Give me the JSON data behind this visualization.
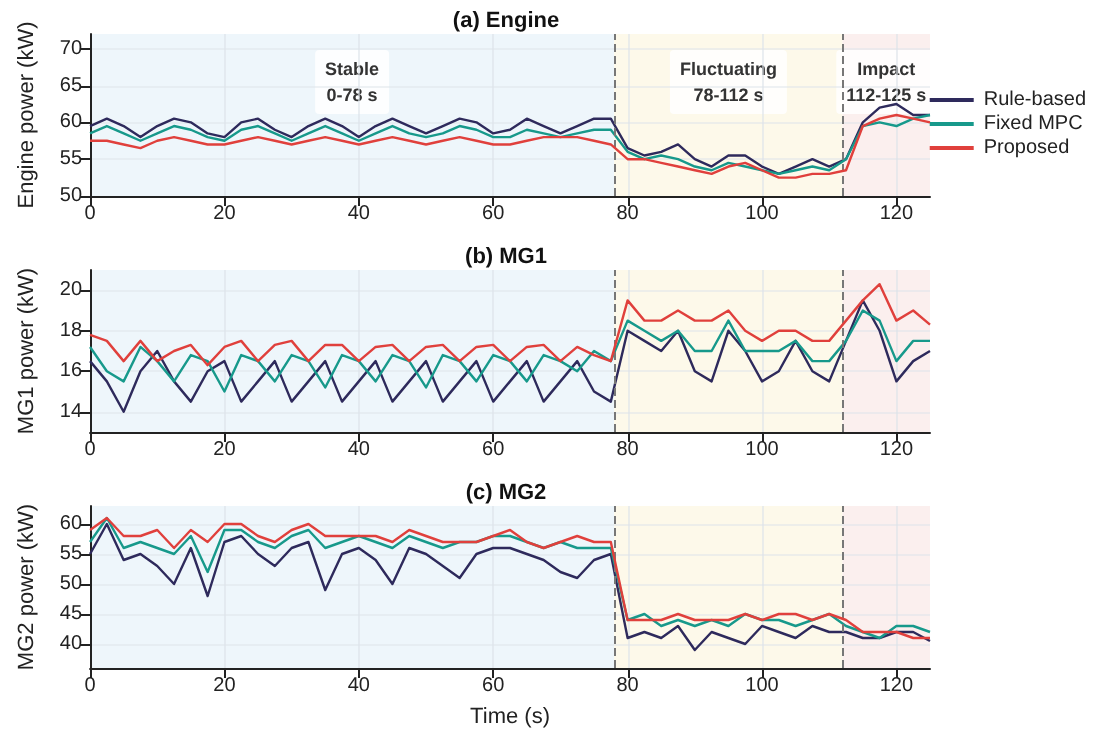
{
  "chart_data": [
    {
      "type": "line",
      "title": "(a) Engine",
      "ylabel": "Engine power (kW)",
      "x": [
        0,
        2.5,
        5,
        7.5,
        10,
        12.5,
        15,
        17.5,
        20,
        22.5,
        25,
        27.5,
        30,
        32.5,
        35,
        37.5,
        40,
        42.5,
        45,
        47.5,
        50,
        52.5,
        55,
        57.5,
        60,
        62.5,
        65,
        67.5,
        70,
        72.5,
        75,
        77.5,
        80,
        82.5,
        85,
        87.5,
        90,
        92.5,
        95,
        97.5,
        100,
        102.5,
        105,
        107.5,
        110,
        112.5,
        115,
        117.5,
        120,
        122.5,
        125
      ],
      "series": [
        {
          "name": "Rule-based",
          "color": "#2e2a5c",
          "values": [
            59.5,
            60.5,
            59.5,
            58,
            59.5,
            60.5,
            60,
            58.5,
            58,
            60,
            60.5,
            59,
            58,
            59.5,
            60.5,
            59.5,
            58,
            59.5,
            60.5,
            59.5,
            58.5,
            59.5,
            60.5,
            60,
            58.5,
            59,
            60.5,
            59.5,
            58.5,
            59.5,
            60.5,
            60.5,
            56.5,
            55.5,
            56,
            57,
            55,
            54,
            55.5,
            55.5,
            54,
            53,
            54,
            55,
            54,
            55,
            60,
            62,
            62.5,
            61,
            61
          ]
        },
        {
          "name": "Fixed MPC",
          "color": "#17998b",
          "values": [
            58.5,
            59.5,
            58.5,
            57.5,
            58.5,
            59.5,
            59,
            58,
            57.5,
            59,
            59.5,
            58.5,
            57.5,
            58.5,
            59.5,
            58.5,
            57.5,
            58.5,
            59.5,
            58.5,
            58,
            58.5,
            59.5,
            59,
            58,
            58,
            59,
            58.5,
            58,
            58.5,
            59,
            59,
            56,
            55,
            55.5,
            55,
            54,
            53.5,
            54.5,
            54,
            53.5,
            53,
            53.5,
            54,
            53.5,
            55,
            59.5,
            60,
            59.5,
            60.5,
            61
          ]
        },
        {
          "name": "Proposed",
          "color": "#e0403c",
          "values": [
            57.5,
            57.5,
            57,
            56.5,
            57.5,
            58,
            57.5,
            57,
            57,
            57.5,
            58,
            57.5,
            57,
            57.5,
            58,
            57.5,
            57,
            57.5,
            58,
            57.5,
            57,
            57.5,
            58,
            57.5,
            57,
            57,
            57.5,
            58,
            58,
            58,
            57.5,
            57,
            55,
            55,
            54.5,
            54,
            53.5,
            53,
            54,
            54.5,
            53.5,
            52.5,
            52.5,
            53,
            53,
            53.5,
            59.5,
            60.5,
            61,
            60.5,
            60
          ]
        }
      ],
      "xlim": [
        0,
        125
      ],
      "xticks": [
        0,
        20,
        40,
        60,
        80,
        100,
        120
      ],
      "ylim": [
        50,
        72
      ],
      "yticks": [
        50,
        55,
        60,
        65,
        70
      ],
      "bands": [
        {
          "axis": "x",
          "from": 0,
          "to": 78,
          "label": "Stable\n0-78 s",
          "color": "#eef6fb"
        },
        {
          "axis": "x",
          "from": 78,
          "to": 112,
          "label": "Fluctuating\n78-112 s",
          "color": "#fdf9ea"
        },
        {
          "axis": "x",
          "from": 112,
          "to": 125,
          "label": "Impact\n112-125 s",
          "color": "#fbefee"
        }
      ],
      "ref_lines": [
        {
          "axis": "x",
          "value": 78,
          "color": "#777777",
          "line_style": "dashed"
        },
        {
          "axis": "x",
          "value": 112,
          "color": "#777777",
          "line_style": "dashed"
        }
      ],
      "grid": true,
      "legend": "right",
      "line_style": "solid"
    },
    {
      "type": "line",
      "title": "(b) MG1",
      "ylabel": "MG1 power (kW)",
      "x": [
        0,
        2.5,
        5,
        7.5,
        10,
        12.5,
        15,
        17.5,
        20,
        22.5,
        25,
        27.5,
        30,
        32.5,
        35,
        37.5,
        40,
        42.5,
        45,
        47.5,
        50,
        52.5,
        55,
        57.5,
        60,
        62.5,
        65,
        67.5,
        70,
        72.5,
        75,
        77.5,
        80,
        82.5,
        85,
        87.5,
        90,
        92.5,
        95,
        97.5,
        100,
        102.5,
        105,
        107.5,
        110,
        112.5,
        115,
        117.5,
        120,
        122.5,
        125
      ],
      "series": [
        {
          "color": "#2e2a5c",
          "values": [
            16.5,
            15.5,
            14,
            16,
            17,
            15.5,
            14.5,
            16,
            16.5,
            14.5,
            15.5,
            16.5,
            14.5,
            15.5,
            16.5,
            14.5,
            15.5,
            16.5,
            14.5,
            15.5,
            16.5,
            14.5,
            15.5,
            16.5,
            14.5,
            15.5,
            16.5,
            14.5,
            15.5,
            16.5,
            15,
            14.5,
            18,
            17.5,
            17,
            18,
            16,
            15.5,
            18,
            17,
            15.5,
            16,
            17.5,
            16,
            15.5,
            17.5,
            19.5,
            18,
            15.5,
            16.5,
            17
          ]
        },
        {
          "color": "#17998b",
          "values": [
            17.2,
            16,
            15.5,
            17.2,
            16.5,
            15.5,
            16.8,
            16.5,
            15,
            16.8,
            16.5,
            15.5,
            16.8,
            16.5,
            15.2,
            16.8,
            16.5,
            15.5,
            16.8,
            16.5,
            15.2,
            16.8,
            16.5,
            15.5,
            16.8,
            16.5,
            15.5,
            16.8,
            16.5,
            16,
            17,
            16.5,
            18.5,
            18,
            17.5,
            18,
            17,
            17,
            18.5,
            17,
            17,
            17,
            17.5,
            16.5,
            16.5,
            17.5,
            19,
            18.5,
            16.5,
            17.5,
            17.5
          ]
        },
        {
          "color": "#e0403c",
          "values": [
            17.8,
            17.5,
            16.5,
            17.5,
            16.5,
            17,
            17.3,
            16.3,
            17.2,
            17.5,
            16.5,
            17.3,
            17.5,
            16.5,
            17.3,
            17.3,
            16.5,
            17.2,
            17.3,
            16.5,
            17.2,
            17.3,
            16.5,
            17.2,
            17.3,
            16.5,
            17.2,
            17.3,
            16.5,
            17.2,
            16.8,
            16.5,
            19.5,
            18.5,
            18.5,
            19,
            18.5,
            18.5,
            19,
            18,
            17.5,
            18,
            18,
            17.5,
            17.5,
            18.5,
            19.5,
            20.3,
            18.5,
            19,
            18.3
          ]
        }
      ],
      "xlim": [
        0,
        125
      ],
      "xticks": [
        0,
        20,
        40,
        60,
        80,
        100,
        120
      ],
      "ylim": [
        13,
        21
      ],
      "yticks": [
        14,
        16,
        18,
        20
      ],
      "bands": [
        {
          "axis": "x",
          "from": 0,
          "to": 78,
          "color": "#eef6fb"
        },
        {
          "axis": "x",
          "from": 78,
          "to": 112,
          "color": "#fdf9ea"
        },
        {
          "axis": "x",
          "from": 112,
          "to": 125,
          "color": "#fbefee"
        }
      ],
      "ref_lines": [
        {
          "axis": "x",
          "value": 78,
          "color": "#777777",
          "line_style": "dashed"
        },
        {
          "axis": "x",
          "value": 112,
          "color": "#777777",
          "line_style": "dashed"
        }
      ],
      "grid": true,
      "legend": false,
      "line_style": "solid"
    },
    {
      "type": "line",
      "title": "(c) MG2",
      "ylabel": "MG2 power (kW)",
      "xlabel": "Time (s)",
      "x": [
        0,
        2.5,
        5,
        7.5,
        10,
        12.5,
        15,
        17.5,
        20,
        22.5,
        25,
        27.5,
        30,
        32.5,
        35,
        37.5,
        40,
        42.5,
        45,
        47.5,
        50,
        52.5,
        55,
        57.5,
        60,
        62.5,
        65,
        67.5,
        70,
        72.5,
        75,
        77.5,
        80,
        82.5,
        85,
        87.5,
        90,
        92.5,
        95,
        97.5,
        100,
        102.5,
        105,
        107.5,
        110,
        112.5,
        115,
        117.5,
        120,
        122.5,
        125
      ],
      "series": [
        {
          "color": "#2e2a5c",
          "values": [
            55,
            60,
            54,
            55,
            53,
            50,
            56,
            48,
            57,
            58,
            55,
            53,
            56,
            57,
            49,
            55,
            56,
            54,
            50,
            56,
            55,
            53,
            51,
            55,
            56,
            56,
            55,
            54,
            52,
            51,
            54,
            55,
            41,
            42,
            41,
            43,
            39,
            42,
            41,
            40,
            43,
            42,
            41,
            43,
            42,
            42,
            41,
            41,
            42,
            42,
            40.5
          ]
        },
        {
          "color": "#17998b",
          "values": [
            57,
            61,
            56,
            57,
            56,
            55,
            58,
            52,
            59,
            59,
            57,
            56,
            58,
            59,
            56,
            57,
            58,
            57,
            56,
            58,
            57,
            56,
            57,
            57,
            58,
            58,
            57,
            56,
            57,
            56,
            56,
            56,
            44,
            45,
            43,
            44,
            43,
            44,
            43,
            45,
            44,
            44,
            43,
            44,
            45,
            43,
            42,
            41,
            43,
            43,
            42
          ]
        },
        {
          "color": "#e0403c",
          "values": [
            59,
            61,
            58,
            58,
            59,
            56,
            59,
            57,
            60,
            60,
            58,
            57,
            59,
            60,
            58,
            58,
            58,
            58,
            57,
            59,
            58,
            57,
            57,
            57,
            58,
            59,
            57,
            56,
            57,
            58,
            57,
            57,
            44,
            44,
            44,
            45,
            44,
            44,
            44,
            45,
            44,
            45,
            45,
            44,
            45,
            44,
            42,
            42,
            42,
            41,
            41
          ]
        }
      ],
      "xlim": [
        0,
        125
      ],
      "xticks": [
        0,
        20,
        40,
        60,
        80,
        100,
        120
      ],
      "ylim": [
        36,
        63
      ],
      "yticks": [
        40,
        45,
        50,
        55,
        60
      ],
      "bands": [
        {
          "axis": "x",
          "from": 0,
          "to": 78,
          "color": "#eef6fb"
        },
        {
          "axis": "x",
          "from": 78,
          "to": 112,
          "color": "#fdf9ea"
        },
        {
          "axis": "x",
          "from": 112,
          "to": 125,
          "color": "#fbefee"
        }
      ],
      "ref_lines": [
        {
          "axis": "x",
          "value": 78,
          "color": "#777777",
          "line_style": "dashed"
        },
        {
          "axis": "x",
          "value": 112,
          "color": "#777777",
          "line_style": "dashed"
        }
      ],
      "grid": true,
      "legend": false,
      "line_style": "solid"
    }
  ]
}
